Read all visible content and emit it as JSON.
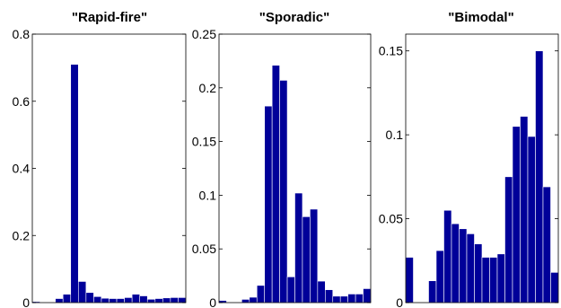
{
  "chart_data": [
    {
      "type": "bar",
      "title": "\"Rapid-fire\"",
      "xlabel": "",
      "ylabel": "",
      "ylim": [
        0,
        0.8
      ],
      "yticks": [
        "0",
        "0.2",
        "0.4",
        "0.6",
        "0.8"
      ],
      "bar_color": "#000099",
      "values": [
        0.003,
        0.0,
        0.0,
        0.012,
        0.025,
        0.71,
        0.063,
        0.03,
        0.018,
        0.013,
        0.012,
        0.012,
        0.015,
        0.025,
        0.02,
        0.01,
        0.012,
        0.014,
        0.015,
        0.015
      ]
    },
    {
      "type": "bar",
      "title": "\"Sporadic\"",
      "xlabel": "",
      "ylabel": "",
      "ylim": [
        0,
        0.25
      ],
      "yticks": [
        "0",
        "0.05",
        "0.1",
        "0.15",
        "0.2",
        "0.25"
      ],
      "bar_color": "#000099",
      "values": [
        0.002,
        0.0,
        0.0,
        0.003,
        0.005,
        0.016,
        0.183,
        0.221,
        0.207,
        0.024,
        0.102,
        0.08,
        0.087,
        0.02,
        0.012,
        0.006,
        0.006,
        0.008,
        0.008,
        0.013
      ]
    },
    {
      "type": "bar",
      "title": "\"Bimodal\"",
      "xlabel": "",
      "ylabel": "",
      "ylim": [
        0,
        0.16
      ],
      "yticks": [
        "0",
        "0.05",
        "0.1",
        "0.15"
      ],
      "bar_color": "#000099",
      "values": [
        0.027,
        0.0,
        0.0,
        0.013,
        0.031,
        0.055,
        0.047,
        0.044,
        0.041,
        0.035,
        0.027,
        0.027,
        0.029,
        0.075,
        0.105,
        0.111,
        0.099,
        0.15,
        0.069,
        0.018
      ]
    }
  ]
}
